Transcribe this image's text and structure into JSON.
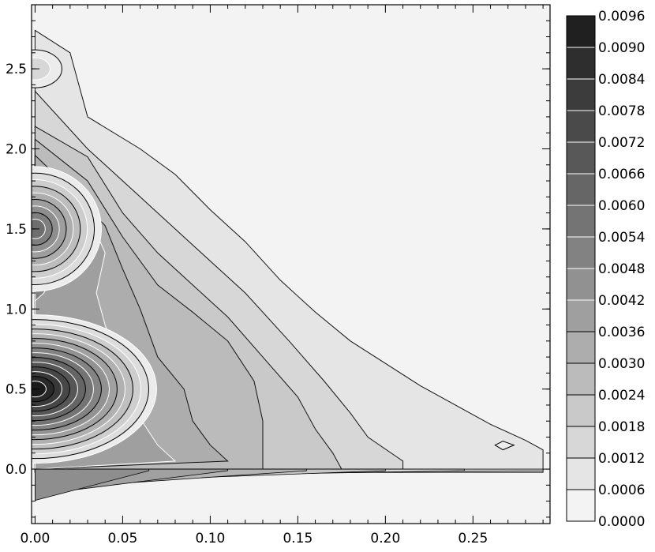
{
  "chart_data": {
    "type": "contour",
    "title": "",
    "xlabel": "",
    "ylabel": "",
    "xlim": [
      -0.002,
      0.294
    ],
    "ylim": [
      -0.34,
      2.9
    ],
    "x_ticks": [
      0.0,
      0.05,
      0.1,
      0.15,
      0.2,
      0.25
    ],
    "x_tick_labels": [
      "0.00",
      "0.05",
      "0.10",
      "0.15",
      "0.20",
      "0.25"
    ],
    "y_ticks": [
      0.0,
      0.5,
      1.0,
      1.5,
      2.0,
      2.5
    ],
    "y_tick_labels": [
      "0.0",
      "0.5",
      "1.0",
      "1.5",
      "2.0",
      "2.5"
    ],
    "colorbar": {
      "levels": [
        0.0,
        0.0006,
        0.0012,
        0.0018,
        0.0024,
        0.003,
        0.0036,
        0.0042,
        0.0048,
        0.0054,
        0.006,
        0.0066,
        0.0072,
        0.0078,
        0.0084,
        0.009,
        0.0096
      ],
      "labels": [
        "0.0000",
        "0.0006",
        "0.0012",
        "0.0018",
        "0.0024",
        "0.0030",
        "0.0036",
        "0.0042",
        "0.0048",
        "0.0054",
        "0.0060",
        "0.0066",
        "0.0072",
        "0.0078",
        "0.0084",
        "0.0090",
        "0.0096"
      ],
      "colormap": "gray-reversed"
    },
    "peaks": [
      {
        "x": 0.0,
        "y": 0.5,
        "value": 0.0096
      },
      {
        "x": 0.0,
        "y": 1.5,
        "value": 0.006
      },
      {
        "x": 0.0,
        "y": 2.5,
        "value": 0.0018
      }
    ],
    "contour_boundaries": [
      {
        "level": 0.0006,
        "points": [
          [
            0.0,
            2.74
          ],
          [
            0.02,
            2.6
          ],
          [
            0.03,
            2.2
          ],
          [
            0.06,
            2.0
          ],
          [
            0.08,
            1.84
          ],
          [
            0.1,
            1.62
          ],
          [
            0.12,
            1.42
          ],
          [
            0.14,
            1.18
          ],
          [
            0.16,
            0.98
          ],
          [
            0.18,
            0.8
          ],
          [
            0.2,
            0.66
          ],
          [
            0.22,
            0.52
          ],
          [
            0.24,
            0.4
          ],
          [
            0.26,
            0.28
          ],
          [
            0.28,
            0.18
          ],
          [
            0.29,
            0.12
          ],
          [
            0.29,
            -0.02
          ],
          [
            0.0,
            -0.02
          ]
        ]
      },
      {
        "level": 0.0012,
        "points": [
          [
            0.0,
            2.36
          ],
          [
            0.03,
            2.0
          ],
          [
            0.06,
            1.7
          ],
          [
            0.09,
            1.4
          ],
          [
            0.12,
            1.1
          ],
          [
            0.145,
            0.8
          ],
          [
            0.165,
            0.55
          ],
          [
            0.18,
            0.35
          ],
          [
            0.19,
            0.2
          ],
          [
            0.21,
            0.05
          ],
          [
            0.21,
            -0.02
          ],
          [
            0.0,
            -0.02
          ]
        ]
      },
      {
        "level": 0.0018,
        "points": [
          [
            0.0,
            2.14
          ],
          [
            0.03,
            1.95
          ],
          [
            0.05,
            1.6
          ],
          [
            0.07,
            1.35
          ],
          [
            0.09,
            1.15
          ],
          [
            0.11,
            0.95
          ],
          [
            0.13,
            0.7
          ],
          [
            0.15,
            0.45
          ],
          [
            0.16,
            0.25
          ],
          [
            0.17,
            0.1
          ],
          [
            0.175,
            0.0
          ],
          [
            0.0,
            -0.02
          ]
        ]
      },
      {
        "level": 0.0024,
        "points": [
          [
            0.0,
            2.06
          ],
          [
            0.03,
            1.8
          ],
          [
            0.05,
            1.45
          ],
          [
            0.07,
            1.15
          ],
          [
            0.09,
            0.98
          ],
          [
            0.11,
            0.8
          ],
          [
            0.125,
            0.55
          ],
          [
            0.13,
            0.3
          ],
          [
            0.13,
            0.1
          ],
          [
            0.13,
            0.0
          ],
          [
            0.0,
            -0.02
          ]
        ]
      },
      {
        "level": 0.003,
        "points": [
          [
            0.0,
            1.96
          ],
          [
            0.02,
            1.75
          ],
          [
            0.04,
            1.52
          ],
          [
            0.05,
            1.25
          ],
          [
            0.06,
            1.0
          ],
          [
            0.065,
            0.85
          ],
          [
            0.07,
            0.7
          ],
          [
            0.085,
            0.5
          ],
          [
            0.09,
            0.3
          ],
          [
            0.1,
            0.15
          ],
          [
            0.11,
            0.05
          ],
          [
            0.0,
            0.0
          ]
        ]
      },
      {
        "level": 0.0036,
        "points": [
          [
            0.0,
            1.85
          ],
          [
            0.03,
            1.6
          ],
          [
            0.04,
            1.35
          ],
          [
            0.035,
            1.1
          ],
          [
            0.04,
            0.9
          ],
          [
            0.05,
            0.6
          ],
          [
            0.055,
            0.4
          ],
          [
            0.07,
            0.15
          ],
          [
            0.08,
            0.05
          ],
          [
            0.0,
            0.0
          ]
        ]
      },
      {
        "level": 0.0048,
        "points": [
          [
            0.0,
            1.75
          ],
          [
            0.02,
            1.6
          ],
          [
            0.025,
            1.45
          ],
          [
            0.015,
            1.3
          ],
          [
            0.005,
            1.1
          ],
          [
            0.0,
            1.05
          ]
        ]
      },
      {
        "level": 0.0048,
        "points": [
          [
            0.0,
            0.85
          ],
          [
            0.03,
            0.75
          ],
          [
            0.045,
            0.55
          ],
          [
            0.04,
            0.35
          ],
          [
            0.03,
            0.2
          ],
          [
            0.02,
            0.1
          ],
          [
            0.0,
            0.05
          ]
        ]
      },
      {
        "level": 0.0066,
        "points": [
          [
            0.0,
            0.7
          ],
          [
            0.015,
            0.65
          ],
          [
            0.02,
            0.5
          ],
          [
            0.015,
            0.35
          ],
          [
            0.0,
            0.28
          ]
        ]
      }
    ],
    "small_island": {
      "x": 0.268,
      "y": 0.15,
      "level": 0.0006
    }
  }
}
